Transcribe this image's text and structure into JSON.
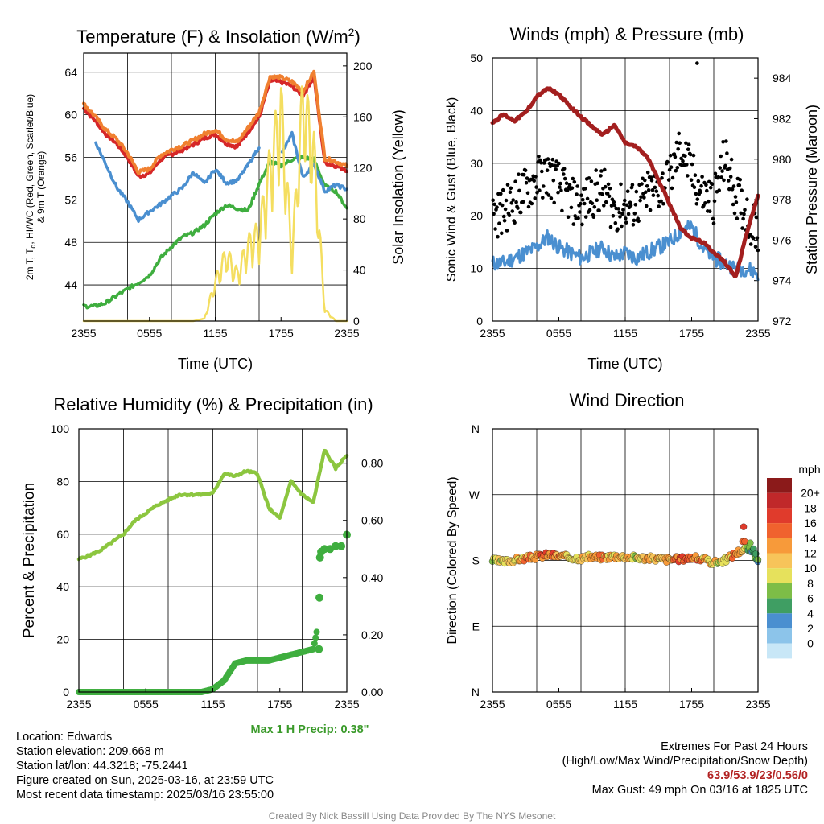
{
  "chart_data": [
    {
      "type": "line",
      "title": "Temperature (F) & Insolation (W/m²)",
      "title_main": "Temperature (F) & Insolation (W/m",
      "title_sup": "2",
      "title_close": ")",
      "xlabel": "Time (UTC)",
      "ylabel": "2m T, Td, HI/WC (Red, Green, Scarlet/Blue) & 9m T (Orange)",
      "ylabel_line1": "2m T, T",
      "ylabel_sub": "d",
      "ylabel_line1_rest": ", HI/WC (Red, Green, Scarlet/Blue)",
      "ylabel_line2": "& 9m T (Orange)",
      "y2label": "Solar Insolation (Yellow)",
      "x_ticks": [
        "2355",
        "0555",
        "1155",
        "1755",
        "2355"
      ],
      "ylim": [
        40.6,
        65.8
      ],
      "y_ticks": [
        "44",
        "48",
        "52",
        "56",
        "60",
        "64"
      ],
      "y2lim": [
        0,
        210
      ],
      "y2_ticks": [
        "0",
        "40",
        "80",
        "120",
        "160",
        "200"
      ],
      "hours": [
        0,
        1,
        2,
        3,
        4,
        5,
        6,
        7,
        8,
        9,
        10,
        11,
        12,
        13,
        14,
        15,
        16,
        17,
        18,
        19,
        20,
        21,
        22,
        23,
        24
      ],
      "series": [
        {
          "role": "temperature",
          "color": "#d62728",
          "values": [
            60.6,
            59.5,
            58.2,
            57.3,
            56.0,
            54.2,
            54.5,
            55.8,
            56.3,
            56.7,
            57.2,
            57.8,
            58.2,
            57.3,
            57.0,
            58.4,
            59.8,
            63.2,
            63.1,
            62.7,
            61.8,
            63.6,
            55.5,
            55.2,
            54.8
          ]
        },
        {
          "role": "9m temperature",
          "color": "#f08030",
          "values": [
            61.0,
            59.9,
            58.6,
            57.7,
            56.4,
            54.6,
            54.9,
            56.2,
            56.7,
            57.1,
            57.6,
            58.2,
            58.6,
            57.7,
            57.4,
            58.8,
            60.2,
            63.6,
            63.5,
            63.1,
            62.2,
            64.0,
            55.9,
            55.6,
            55.2
          ]
        },
        {
          "role": "dew point",
          "color": "#3fae3f",
          "values": [
            42.0,
            42.0,
            42.3,
            43.0,
            43.6,
            44.2,
            44.9,
            46.5,
            47.6,
            48.5,
            48.9,
            49.6,
            50.7,
            51.5,
            51.2,
            51.0,
            53.5,
            55.6,
            55.2,
            55.8,
            56.0,
            55.8,
            53.3,
            52.8,
            51.2
          ]
        },
        {
          "role": "heat index / wind chill",
          "color": "#4a8fd0",
          "values": [
            null,
            57.6,
            55.4,
            53.2,
            51.8,
            50.1,
            50.9,
            51.6,
            52.4,
            53.1,
            54.6,
            53.5,
            54.9,
            53.6,
            53.8,
            55.3,
            57.0,
            null,
            56.2,
            58.2,
            54.1,
            55.4,
            52.8,
            53.4,
            53.0
          ]
        },
        {
          "role": "solar insolation",
          "color": "#f4de60",
          "axis": "y2",
          "values": [
            0,
            0,
            0,
            0,
            0,
            0,
            0,
            0,
            0,
            0,
            0,
            2,
            35,
            60,
            42,
            68,
            80,
            140,
            190,
            60,
            200,
            150,
            10,
            0,
            0
          ]
        }
      ]
    },
    {
      "type": "line",
      "title": "Winds (mph) & Pressure (mb)",
      "xlabel": "Time (UTC)",
      "ylabel": "Sonic Wind & Gust (Blue, Black)",
      "y2label": "Station Pressure (Maroon)",
      "x_ticks": [
        "2355",
        "0555",
        "1155",
        "1755",
        "2355"
      ],
      "ylim": [
        0,
        50
      ],
      "y_ticks": [
        "0",
        "10",
        "20",
        "30",
        "40",
        "50"
      ],
      "y2lim": [
        972,
        985
      ],
      "y2_ticks": [
        "972",
        "974",
        "976",
        "978",
        "980",
        "982",
        "984"
      ],
      "hours": [
        0,
        1,
        2,
        3,
        4,
        5,
        6,
        7,
        8,
        9,
        10,
        11,
        12,
        13,
        14,
        15,
        16,
        17,
        18,
        19,
        20,
        21,
        22,
        23,
        24
      ],
      "series": [
        {
          "role": "sonic wind",
          "color": "#4a8fd0",
          "values": [
            11,
            11,
            12,
            13,
            14,
            16,
            14,
            13,
            12,
            13,
            14,
            12,
            13,
            12,
            13,
            14,
            15,
            17,
            18,
            14,
            12,
            11,
            10,
            10,
            9
          ]
        },
        {
          "role": "gust",
          "color": "#000000",
          "style": "dots",
          "values": [
            20,
            21,
            23,
            25,
            27,
            28,
            26,
            23,
            22,
            24,
            25,
            21,
            22,
            22,
            24,
            25,
            27,
            33,
            28,
            24,
            23,
            31,
            24,
            20,
            17
          ],
          "max": 49
        },
        {
          "role": "station pressure",
          "color": "#a31f1f",
          "axis": "y2",
          "values": [
            981.8,
            982.2,
            981.9,
            982.3,
            983.1,
            983.5,
            983.2,
            982.6,
            982.1,
            981.6,
            981.2,
            981.7,
            980.8,
            980.6,
            980.1,
            979.0,
            977.8,
            976.6,
            976.1,
            975.9,
            975.4,
            974.9,
            974.2,
            976.4,
            978.2
          ]
        }
      ]
    },
    {
      "type": "line",
      "title": "Relative Humidity (%) & Precipitation (in)",
      "ylabel": "Percent & Precipitation",
      "x_ticks": [
        "2355",
        "0555",
        "1155",
        "1755",
        "2355"
      ],
      "ylim": [
        0,
        100
      ],
      "y_ticks": [
        "0",
        "20",
        "40",
        "60",
        "80",
        "100"
      ],
      "y2lim": [
        0,
        0.92
      ],
      "y2_ticks": [
        "0.00",
        "0.20",
        "0.40",
        "0.60",
        "0.80"
      ],
      "hours": [
        0,
        1,
        2,
        3,
        4,
        5,
        6,
        7,
        8,
        9,
        10,
        11,
        12,
        13,
        14,
        15,
        16,
        17,
        18,
        19,
        20,
        21,
        22,
        23,
        24
      ],
      "series": [
        {
          "role": "relative humidity",
          "color": "#8cc63f",
          "values": [
            50.5,
            52,
            54,
            57,
            60,
            65,
            68,
            71,
            73,
            75,
            75,
            75,
            75.5,
            83,
            82,
            84,
            83,
            70,
            66,
            80,
            75,
            72,
            92,
            85,
            90
          ]
        },
        {
          "role": "precipitation",
          "color": "#3fae3f",
          "axis": "y2",
          "values": [
            0,
            0,
            0,
            0,
            0,
            0,
            0,
            0,
            0,
            0,
            0,
            0,
            0.01,
            0.04,
            0.1,
            0.11,
            0.11,
            0.11,
            0.12,
            0.13,
            0.14,
            0.15,
            0.35,
            0.53,
            0.55
          ]
        }
      ],
      "annotation": "Max 1 H Precip: 0.38\""
    },
    {
      "type": "scatter",
      "title": "Wind Direction",
      "ylabel": "Direction (Colored By Speed)",
      "x_ticks": [
        "2355",
        "0555",
        "1155",
        "1755",
        "2355"
      ],
      "y_ticks": [
        "N",
        "E",
        "S",
        "W",
        "N"
      ],
      "ylim": [
        0,
        360
      ],
      "hours": [
        0,
        1,
        2,
        3,
        4,
        5,
        6,
        7,
        8,
        9,
        10,
        11,
        12,
        13,
        14,
        15,
        16,
        17,
        18,
        19,
        20,
        21,
        22,
        23,
        24
      ],
      "direction_values": [
        180,
        178,
        181,
        183,
        185,
        188,
        186,
        184,
        183,
        185,
        184,
        186,
        185,
        184,
        183,
        182,
        181,
        182,
        184,
        181,
        177,
        180,
        190,
        198,
        182
      ],
      "speed_values": [
        11,
        12,
        13,
        14,
        15,
        17,
        15,
        13,
        12,
        14,
        15,
        13,
        14,
        12,
        13,
        14,
        15,
        17,
        18,
        14,
        12,
        11,
        17,
        8,
        6
      ],
      "legend_title": "mph",
      "legend_labels": [
        "20+",
        "18",
        "16",
        "14",
        "12",
        "10",
        "8",
        "6",
        "4",
        "2",
        "0"
      ],
      "legend_colors": [
        "#8b1a1a",
        "#c0282a",
        "#e03b2c",
        "#f0622e",
        "#f79a3a",
        "#f7c45a",
        "#e6e15c",
        "#7dbd47",
        "#3f9e63",
        "#4a8fd0",
        "#8cc4ea",
        "#c8e7f7"
      ]
    }
  ],
  "info": {
    "location": "Location: Edwards",
    "elevation": "Station elevation: 209.668 m",
    "latlon": "Station lat/lon: 44.3218; -75.2441",
    "created": "Figure created on Sun, 2025-03-16, at 23:59 UTC",
    "recent": "Most recent data timestamp: 2025/03/16 23:55:00"
  },
  "extremes": {
    "title": "Extremes For Past 24 Hours",
    "subtitle": "(High/Low/Max Wind/Precipitation/Snow Depth)",
    "values": "63.9/53.9/23/0.56/0",
    "gust": "Max Gust: 49 mph On 03/16 at 1825 UTC"
  },
  "credit": "Created By Nick Bassill Using Data Provided By The NYS Mesonet"
}
